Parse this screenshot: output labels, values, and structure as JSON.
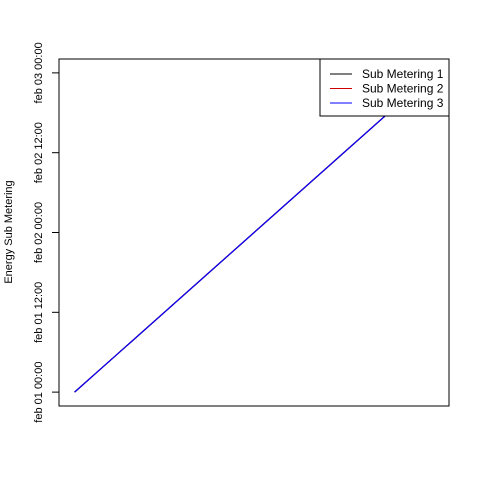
{
  "chart_data": {
    "type": "line",
    "title": "",
    "xlabel": "",
    "ylabel": "Energy Sub Metering",
    "grid": false,
    "legend_position": "top-right",
    "y_axis": {
      "type": "datetime",
      "range": [
        "2007-02-01 00:00",
        "2007-02-03 00:00"
      ],
      "ticks": [
        {
          "value": "2007-02-01 00:00",
          "label": "feb 01 00:00"
        },
        {
          "value": "2007-02-01 12:00",
          "label": "feb 01 12:00"
        },
        {
          "value": "2007-02-02 00:00",
          "label": "feb 02 00:00"
        },
        {
          "value": "2007-02-02 12:00",
          "label": "feb 02 12:00"
        },
        {
          "value": "2007-02-03 00:00",
          "label": "feb 03 00:00"
        }
      ]
    },
    "x_axis": {
      "range": [
        1,
        10
      ],
      "ticks": []
    },
    "series": [
      {
        "name": "Sub Metering 1",
        "color": "#000000",
        "points": [
          {
            "x": 1,
            "y": "2007-02-01 00:00"
          },
          {
            "x": 10,
            "y": "2007-02-02 23:59"
          }
        ]
      },
      {
        "name": "Sub Metering 2",
        "color": "#cc0000",
        "points": [
          {
            "x": 1,
            "y": "2007-02-01 00:00"
          },
          {
            "x": 10,
            "y": "2007-02-02 23:59"
          }
        ]
      },
      {
        "name": "Sub Metering 3",
        "color": "#0000ff",
        "points": [
          {
            "x": 1,
            "y": "2007-02-01 00:00"
          },
          {
            "x": 10,
            "y": "2007-02-02 23:59"
          }
        ]
      }
    ]
  }
}
